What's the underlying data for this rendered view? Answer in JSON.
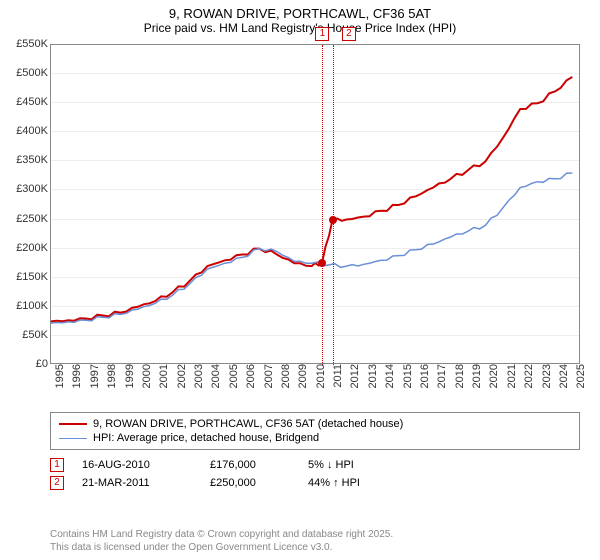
{
  "title": {
    "line1": "9, ROWAN DRIVE, PORTHCAWL, CF36 5AT",
    "line2": "Price paid vs. HM Land Registry's House Price Index (HPI)"
  },
  "chart": {
    "type": "line",
    "x_start_year": 1995,
    "x_end_year": 2025,
    "xlim": [
      1995,
      2025.5
    ],
    "ylim": [
      0,
      550000
    ],
    "ytick_step": 50000,
    "ytick_format": "£{}K",
    "yticks": [
      "£0",
      "£50K",
      "£100K",
      "£150K",
      "£200K",
      "£250K",
      "£300K",
      "£350K",
      "£400K",
      "£450K",
      "£500K",
      "£550K"
    ],
    "xticks": [
      "1995",
      "1996",
      "1997",
      "1998",
      "1999",
      "2000",
      "2001",
      "2002",
      "2003",
      "2004",
      "2005",
      "2006",
      "2007",
      "2008",
      "2009",
      "2010",
      "2011",
      "2012",
      "2013",
      "2014",
      "2015",
      "2016",
      "2017",
      "2018",
      "2019",
      "2020",
      "2021",
      "2022",
      "2023",
      "2024",
      "2025"
    ],
    "background_color": "#ffffff",
    "grid_color": "#eeeeee",
    "border_color": "#888888",
    "series": [
      {
        "name": "9, ROWAN DRIVE, PORTHCAWL, CF36 5AT (detached house)",
        "color": "#cc0000",
        "line_width": 2,
        "points": [
          [
            1995,
            75000
          ],
          [
            1996,
            77000
          ],
          [
            1997,
            80000
          ],
          [
            1998,
            85000
          ],
          [
            1999,
            90000
          ],
          [
            2000,
            100000
          ],
          [
            2001,
            110000
          ],
          [
            2002,
            125000
          ],
          [
            2003,
            145000
          ],
          [
            2004,
            170000
          ],
          [
            2005,
            180000
          ],
          [
            2006,
            190000
          ],
          [
            2007,
            200000
          ],
          [
            2008,
            190000
          ],
          [
            2009,
            175000
          ],
          [
            2010,
            170000
          ],
          [
            2010.6,
            176000
          ],
          [
            2011.2,
            250000
          ],
          [
            2012,
            250000
          ],
          [
            2013,
            255000
          ],
          [
            2014,
            265000
          ],
          [
            2015,
            275000
          ],
          [
            2016,
            290000
          ],
          [
            2017,
            305000
          ],
          [
            2018,
            320000
          ],
          [
            2019,
            335000
          ],
          [
            2020,
            350000
          ],
          [
            2021,
            390000
          ],
          [
            2022,
            440000
          ],
          [
            2023,
            450000
          ],
          [
            2024,
            470000
          ],
          [
            2025,
            495000
          ]
        ]
      },
      {
        "name": "HPI: Average price, detached house, Bridgend",
        "color": "#6a8fd8",
        "line_width": 1.5,
        "points": [
          [
            1995,
            72000
          ],
          [
            1996,
            74000
          ],
          [
            1997,
            77000
          ],
          [
            1998,
            82000
          ],
          [
            1999,
            87000
          ],
          [
            2000,
            96000
          ],
          [
            2001,
            106000
          ],
          [
            2002,
            120000
          ],
          [
            2003,
            140000
          ],
          [
            2004,
            165000
          ],
          [
            2005,
            175000
          ],
          [
            2006,
            185000
          ],
          [
            2007,
            200000
          ],
          [
            2008,
            195000
          ],
          [
            2009,
            178000
          ],
          [
            2010,
            175000
          ],
          [
            2011,
            172000
          ],
          [
            2012,
            170000
          ],
          [
            2013,
            173000
          ],
          [
            2014,
            180000
          ],
          [
            2015,
            188000
          ],
          [
            2016,
            198000
          ],
          [
            2017,
            208000
          ],
          [
            2018,
            220000
          ],
          [
            2019,
            230000
          ],
          [
            2020,
            240000
          ],
          [
            2021,
            270000
          ],
          [
            2022,
            305000
          ],
          [
            2023,
            315000
          ],
          [
            2024,
            320000
          ],
          [
            2025,
            330000
          ]
        ]
      }
    ],
    "sale_markers": [
      {
        "num": "1",
        "year": 2010.62,
        "price": 176000
      },
      {
        "num": "2",
        "year": 2011.22,
        "price": 250000
      }
    ]
  },
  "legend": {
    "series1": "9, ROWAN DRIVE, PORTHCAWL, CF36 5AT (detached house)",
    "series2": "HPI: Average price, detached house, Bridgend"
  },
  "sales": [
    {
      "num": "1",
      "date": "16-AUG-2010",
      "price": "£176,000",
      "pct": "5% ↓ HPI"
    },
    {
      "num": "2",
      "date": "21-MAR-2011",
      "price": "£250,000",
      "pct": "44% ↑ HPI"
    }
  ],
  "footer": {
    "line1": "Contains HM Land Registry data © Crown copyright and database right 2025.",
    "line2": "This data is licensed under the Open Government Licence v3.0."
  }
}
